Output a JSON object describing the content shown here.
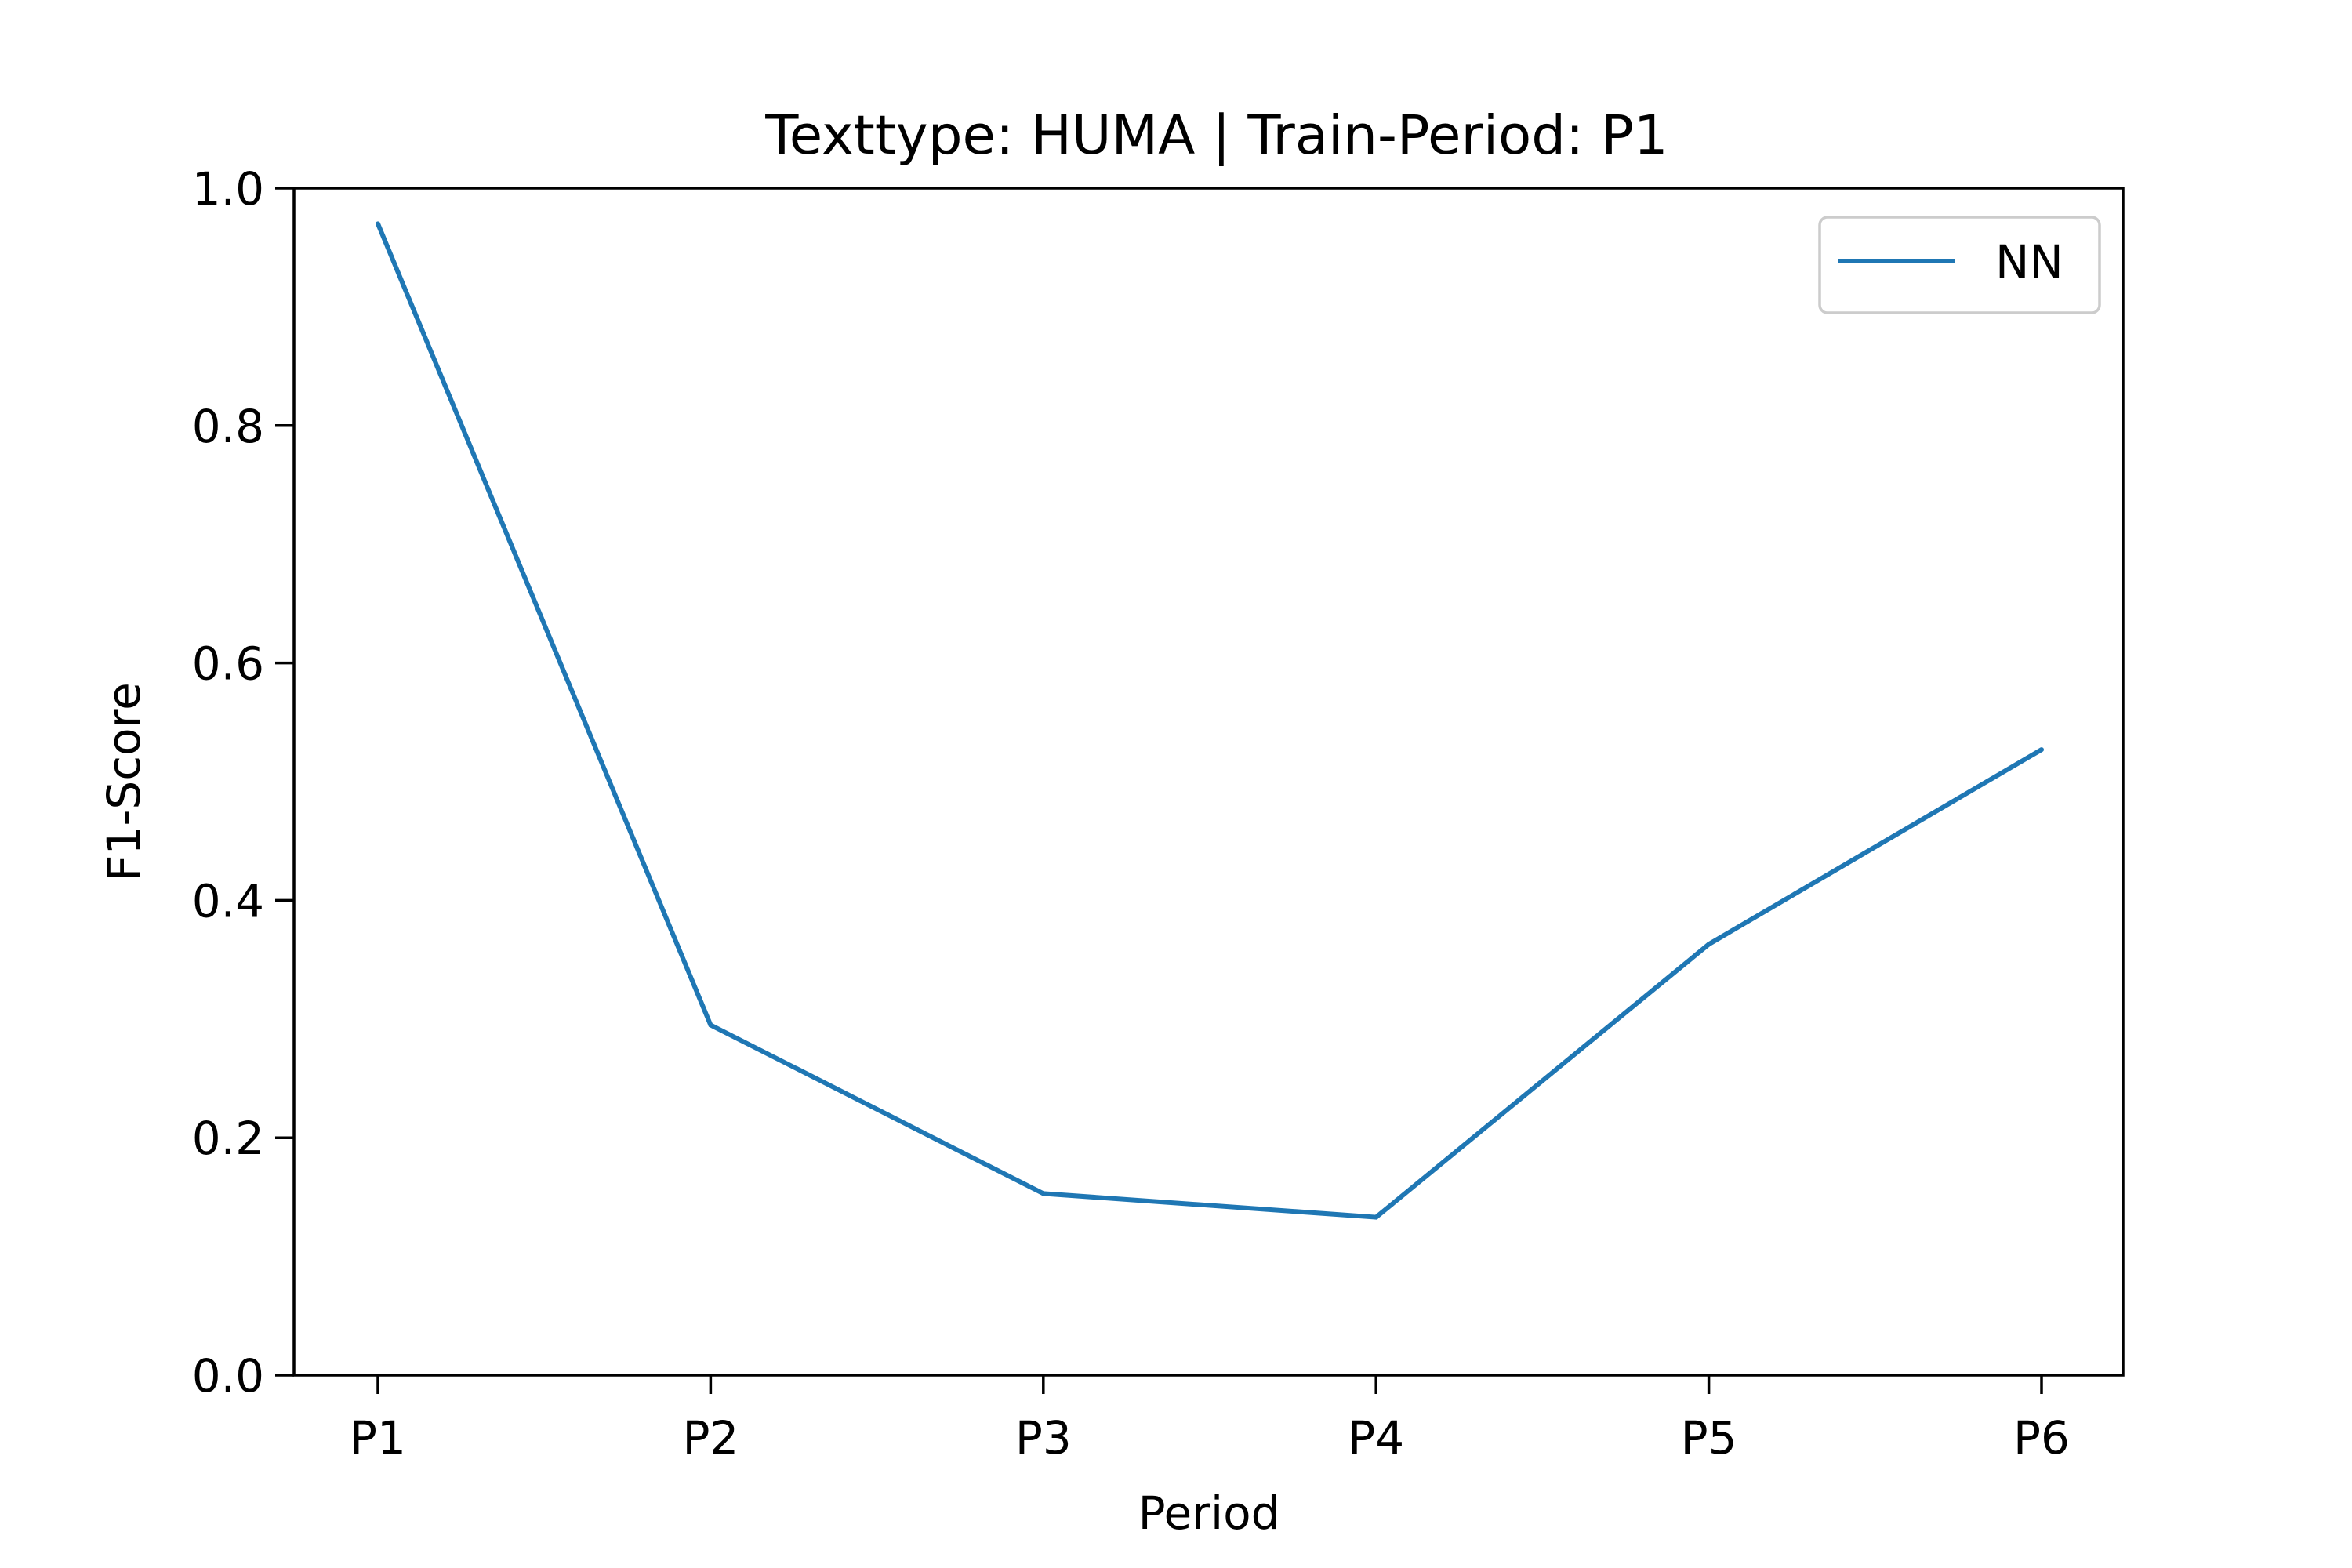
{
  "chart_data": {
    "type": "line",
    "title": "Texttype: HUMA | Train-Period: P1",
    "xlabel": "Period",
    "ylabel": "F1-Score",
    "categories": [
      "P1",
      "P2",
      "P3",
      "P4",
      "P5",
      "P6"
    ],
    "series": [
      {
        "name": "NN",
        "color": "#1f77b4",
        "values": [
          0.97,
          0.295,
          0.153,
          0.133,
          0.363,
          0.527
        ]
      }
    ],
    "ylim": [
      0.0,
      1.0
    ],
    "yticks": [
      0.0,
      0.2,
      0.4,
      0.6,
      0.8,
      1.0
    ],
    "ytick_labels": [
      "0.0",
      "0.2",
      "0.4",
      "0.6",
      "0.8",
      "1.0"
    ],
    "grid": false,
    "legend_position": "top-right"
  }
}
